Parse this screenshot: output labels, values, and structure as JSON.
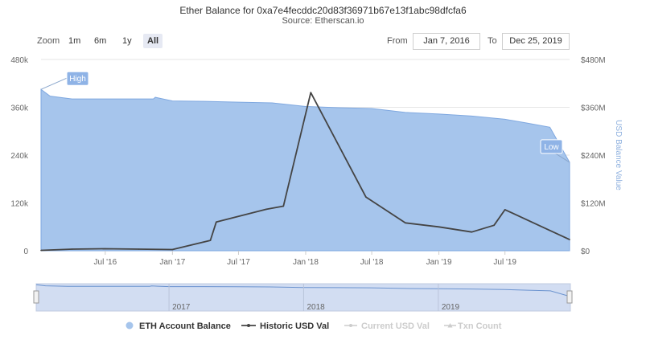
{
  "header": {
    "title": "Ether Balance for 0xa7e4fecddc20d83f36971b67e13f1abc98dfcfa6",
    "subtitle": "Source: Etherscan.io"
  },
  "toolbar": {
    "zoom_label": "Zoom",
    "zoom_buttons": [
      "1m",
      "6m",
      "1y",
      "All"
    ],
    "active_zoom": "All",
    "from_label": "From",
    "from_value": "Jan 7, 2016",
    "to_label": "To",
    "to_value": "Dec 25, 2019"
  },
  "colors": {
    "balance_fill": "#a6c5ec",
    "usd_line": "#444444",
    "flag": "#8fb3e6",
    "navigator_fill": "#d2ddf2"
  },
  "chart_data": {
    "type": "area",
    "x_axis": {
      "type": "date",
      "range": [
        "2016-01-07",
        "2019-12-25"
      ],
      "tick_labels": [
        {
          "date": "2016-07-01",
          "label": "Jul '16"
        },
        {
          "date": "2017-01-01",
          "label": "Jan '17"
        },
        {
          "date": "2017-07-01",
          "label": "Jul '17"
        },
        {
          "date": "2018-01-01",
          "label": "Jan '18"
        },
        {
          "date": "2018-07-01",
          "label": "Jul '18"
        },
        {
          "date": "2019-01-01",
          "label": "Jan '19"
        },
        {
          "date": "2019-07-01",
          "label": "Jul '19"
        }
      ]
    },
    "y_axis_left": {
      "range": [
        0,
        480000
      ],
      "ticks": [
        0,
        120000,
        240000,
        360000,
        480000
      ],
      "tick_labels": [
        "0",
        "120k",
        "240k",
        "360k",
        "480k"
      ]
    },
    "y_axis_right": {
      "title": "USD Balance Value",
      "range": [
        0,
        480000000
      ],
      "ticks": [
        0,
        120000000,
        240000000,
        360000000,
        480000000
      ],
      "tick_labels": [
        "$0",
        "$120M",
        "$240M",
        "$360M",
        "$480M"
      ]
    },
    "grid": true,
    "legend_position": "bottom",
    "series": [
      {
        "name": "ETH Account Balance",
        "kind": "area",
        "axis": "left",
        "points": [
          [
            "2016-01-07",
            405000
          ],
          [
            "2016-02-01",
            388000
          ],
          [
            "2016-04-01",
            381000
          ],
          [
            "2016-07-01",
            381000
          ],
          [
            "2016-10-01",
            381000
          ],
          [
            "2016-11-10",
            381000
          ],
          [
            "2016-11-15",
            385000
          ],
          [
            "2016-12-01",
            382000
          ],
          [
            "2017-01-01",
            376000
          ],
          [
            "2017-04-01",
            375000
          ],
          [
            "2017-07-01",
            373000
          ],
          [
            "2017-10-01",
            371000
          ],
          [
            "2018-01-01",
            362000
          ],
          [
            "2018-04-01",
            359000
          ],
          [
            "2018-07-01",
            357000
          ],
          [
            "2018-10-01",
            347000
          ],
          [
            "2019-01-01",
            343000
          ],
          [
            "2019-04-01",
            338000
          ],
          [
            "2019-07-01",
            330000
          ],
          [
            "2019-09-01",
            320000
          ],
          [
            "2019-11-01",
            310000
          ],
          [
            "2019-12-25",
            222000
          ]
        ]
      },
      {
        "name": "Historic USD Val",
        "kind": "line",
        "axis": "right",
        "points": [
          [
            "2016-01-07",
            1000000
          ],
          [
            "2016-04-01",
            4000000
          ],
          [
            "2016-07-01",
            5000000
          ],
          [
            "2016-10-01",
            4000000
          ],
          [
            "2017-01-01",
            3000000
          ],
          [
            "2017-04-15",
            26000000
          ],
          [
            "2017-05-01",
            72000000
          ],
          [
            "2017-09-15",
            104000000
          ],
          [
            "2017-11-01",
            112000000
          ],
          [
            "2018-01-15",
            397000000
          ],
          [
            "2018-06-15",
            135000000
          ],
          [
            "2018-10-01",
            70000000
          ],
          [
            "2019-01-01",
            60000000
          ],
          [
            "2019-04-01",
            47000000
          ],
          [
            "2019-06-01",
            64000000
          ],
          [
            "2019-07-01",
            103000000
          ],
          [
            "2019-10-15",
            58000000
          ],
          [
            "2019-12-25",
            28000000
          ]
        ]
      },
      {
        "name": "Current USD Val",
        "kind": "line",
        "visible": false
      },
      {
        "name": "Txn Count",
        "kind": "line",
        "visible": false
      }
    ],
    "annotations": [
      {
        "label": "High",
        "date": "2016-01-07",
        "value": 405000
      },
      {
        "label": "Low",
        "date": "2019-12-25",
        "value": 222000
      }
    ],
    "navigator": {
      "tick_labels": [
        {
          "date": "2017-01-01",
          "label": "2017"
        },
        {
          "date": "2018-01-01",
          "label": "2018"
        },
        {
          "date": "2019-01-01",
          "label": "2019"
        }
      ]
    }
  }
}
